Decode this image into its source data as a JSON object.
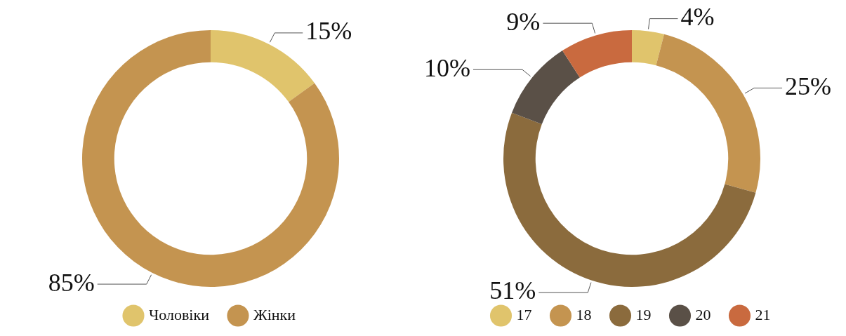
{
  "chart_data": [
    {
      "type": "donut",
      "categories": [
        "Чоловіки",
        "Жінки"
      ],
      "values": [
        15,
        85
      ],
      "colors": [
        "#e0c46c",
        "#c49450"
      ],
      "value_labels": [
        "15%",
        "85%"
      ],
      "legend": "bottom"
    },
    {
      "type": "donut",
      "categories": [
        "17",
        "18",
        "19",
        "20",
        "21"
      ],
      "values": [
        4,
        25,
        51,
        10,
        9
      ],
      "colors": [
        "#e0c46c",
        "#c49450",
        "#8b6b3d",
        "#5a5047",
        "#c96a3f"
      ],
      "value_labels": [
        "4%",
        "25%",
        "51%",
        "10%",
        "9%"
      ],
      "legend": "bottom"
    }
  ]
}
